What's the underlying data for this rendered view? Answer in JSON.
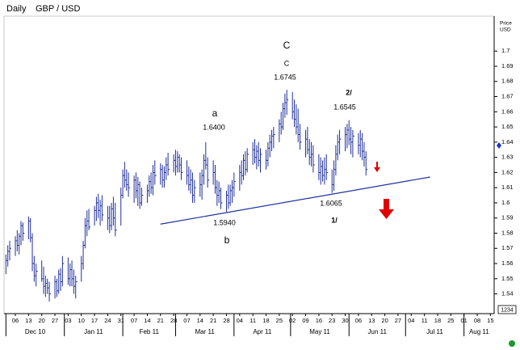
{
  "chart_data": {
    "type": "hlc",
    "title": "Daily",
    "subtitle": "GBP / USD",
    "axis_label": [
      "Price",
      "USD"
    ],
    "corner_label": "1234",
    "color": "#1f2f9e",
    "xlim": [
      "2010-11-30",
      "2011-08-17"
    ],
    "ylim": [
      1.527,
      1.723
    ],
    "yticks": [
      1.7,
      1.69,
      1.68,
      1.67,
      1.66,
      1.65,
      1.64,
      1.63,
      1.62,
      1.61,
      1.6,
      1.59,
      1.58,
      1.57,
      1.56,
      1.55,
      1.54
    ],
    "xticks": [
      {
        "value": "2010-12-06",
        "label": "06"
      },
      {
        "value": "2010-12-13",
        "label": "13"
      },
      {
        "value": "2010-12-20",
        "label": "20"
      },
      {
        "value": "2010-12-27",
        "label": "27"
      },
      {
        "value": "2011-01-03",
        "label": "03"
      },
      {
        "value": "2011-01-10",
        "label": "10"
      },
      {
        "value": "2011-01-17",
        "label": "17"
      },
      {
        "value": "2011-01-24",
        "label": "24"
      },
      {
        "value": "2011-01-31",
        "label": "31"
      },
      {
        "value": "2011-02-07",
        "label": "07"
      },
      {
        "value": "2011-02-14",
        "label": "14"
      },
      {
        "value": "2011-02-21",
        "label": "21"
      },
      {
        "value": "2011-02-28",
        "label": "28"
      },
      {
        "value": "2011-03-07",
        "label": "07"
      },
      {
        "value": "2011-03-14",
        "label": "14"
      },
      {
        "value": "2011-03-21",
        "label": "21"
      },
      {
        "value": "2011-03-28",
        "label": "28"
      },
      {
        "value": "2011-04-04",
        "label": "04"
      },
      {
        "value": "2011-04-11",
        "label": "11"
      },
      {
        "value": "2011-04-18",
        "label": "18"
      },
      {
        "value": "2011-04-25",
        "label": "25"
      },
      {
        "value": "2011-05-02",
        "label": "02"
      },
      {
        "value": "2011-05-09",
        "label": "09"
      },
      {
        "value": "2011-05-16",
        "label": "16"
      },
      {
        "value": "2011-05-23",
        "label": "23"
      },
      {
        "value": "2011-05-30",
        "label": "30"
      },
      {
        "value": "2011-06-06",
        "label": "06"
      },
      {
        "value": "2011-06-13",
        "label": "13"
      },
      {
        "value": "2011-06-20",
        "label": "20"
      },
      {
        "value": "2011-06-27",
        "label": "27"
      },
      {
        "value": "2011-07-04",
        "label": "04"
      },
      {
        "value": "2011-07-11",
        "label": "11"
      },
      {
        "value": "2011-07-18",
        "label": "18"
      },
      {
        "value": "2011-07-25",
        "label": "25"
      },
      {
        "value": "2011-08-01",
        "label": "01"
      },
      {
        "value": "2011-08-08",
        "label": "08"
      },
      {
        "value": "2011-08-15",
        "label": "15"
      }
    ],
    "months": [
      {
        "value": "2010-12",
        "label": "Dec 10"
      },
      {
        "value": "2011-01",
        "label": "Jan 11"
      },
      {
        "value": "2011-02",
        "label": "Feb 11"
      },
      {
        "value": "2011-03",
        "label": "Mar 11"
      },
      {
        "value": "2011-04",
        "label": "Apr 11"
      },
      {
        "value": "2011-05",
        "label": "May 11"
      },
      {
        "value": "2011-06",
        "label": "Jun 11"
      },
      {
        "value": "2011-07",
        "label": "Jul 11"
      },
      {
        "value": "2011-08",
        "label": "Aug 11"
      }
    ],
    "x": [
      "2010-12-01",
      "2010-12-02",
      "2010-12-03",
      "2010-12-06",
      "2010-12-07",
      "2010-12-08",
      "2010-12-09",
      "2010-12-10",
      "2010-12-13",
      "2010-12-14",
      "2010-12-15",
      "2010-12-16",
      "2010-12-17",
      "2010-12-20",
      "2010-12-21",
      "2010-12-22",
      "2010-12-23",
      "2010-12-24",
      "2010-12-27",
      "2010-12-28",
      "2010-12-29",
      "2010-12-30",
      "2010-12-31",
      "2011-01-03",
      "2011-01-04",
      "2011-01-05",
      "2011-01-06",
      "2011-01-07",
      "2011-01-10",
      "2011-01-11",
      "2011-01-12",
      "2011-01-13",
      "2011-01-14",
      "2011-01-17",
      "2011-01-18",
      "2011-01-19",
      "2011-01-20",
      "2011-01-21",
      "2011-01-24",
      "2011-01-25",
      "2011-01-26",
      "2011-01-27",
      "2011-01-28",
      "2011-01-31",
      "2011-02-01",
      "2011-02-02",
      "2011-02-03",
      "2011-02-04",
      "2011-02-07",
      "2011-02-08",
      "2011-02-09",
      "2011-02-10",
      "2011-02-11",
      "2011-02-14",
      "2011-02-15",
      "2011-02-16",
      "2011-02-17",
      "2011-02-18",
      "2011-02-21",
      "2011-02-22",
      "2011-02-23",
      "2011-02-24",
      "2011-02-25",
      "2011-02-28",
      "2011-03-01",
      "2011-03-02",
      "2011-03-03",
      "2011-03-04",
      "2011-03-07",
      "2011-03-08",
      "2011-03-09",
      "2011-03-10",
      "2011-03-11",
      "2011-03-14",
      "2011-03-15",
      "2011-03-16",
      "2011-03-17",
      "2011-03-18",
      "2011-03-21",
      "2011-03-22",
      "2011-03-23",
      "2011-03-24",
      "2011-03-25",
      "2011-03-28",
      "2011-03-29",
      "2011-03-30",
      "2011-03-31",
      "2011-04-01",
      "2011-04-04",
      "2011-04-05",
      "2011-04-06",
      "2011-04-07",
      "2011-04-08",
      "2011-04-11",
      "2011-04-12",
      "2011-04-13",
      "2011-04-14",
      "2011-04-15",
      "2011-04-18",
      "2011-04-19",
      "2011-04-20",
      "2011-04-21",
      "2011-04-22",
      "2011-04-25",
      "2011-04-26",
      "2011-04-27",
      "2011-04-28",
      "2011-04-29",
      "2011-05-02",
      "2011-05-03",
      "2011-05-04",
      "2011-05-05",
      "2011-05-06",
      "2011-05-09",
      "2011-05-10",
      "2011-05-11",
      "2011-05-12",
      "2011-05-13",
      "2011-05-16",
      "2011-05-17",
      "2011-05-18",
      "2011-05-19",
      "2011-05-20",
      "2011-05-23",
      "2011-05-24",
      "2011-05-25",
      "2011-05-26",
      "2011-05-27",
      "2011-05-30",
      "2011-05-31",
      "2011-06-01",
      "2011-06-02",
      "2011-06-03",
      "2011-06-06",
      "2011-06-07",
      "2011-06-08",
      "2011-06-09",
      "2011-06-10"
    ],
    "high": [
      1.566,
      1.572,
      1.575,
      1.578,
      1.582,
      1.58,
      1.588,
      1.587,
      1.591,
      1.59,
      1.58,
      1.565,
      1.56,
      1.562,
      1.558,
      1.552,
      1.55,
      1.548,
      1.552,
      1.55,
      1.556,
      1.557,
      1.565,
      1.564,
      1.56,
      1.562,
      1.556,
      1.552,
      1.565,
      1.575,
      1.59,
      1.595,
      1.596,
      1.598,
      1.604,
      1.606,
      1.602,
      1.605,
      1.598,
      1.598,
      1.6,
      1.604,
      1.6,
      1.61,
      1.622,
      1.627,
      1.622,
      1.62,
      1.618,
      1.62,
      1.617,
      1.614,
      1.61,
      1.612,
      1.618,
      1.62,
      1.625,
      1.628,
      1.626,
      1.625,
      1.624,
      1.63,
      1.633,
      1.632,
      1.635,
      1.634,
      1.632,
      1.63,
      1.628,
      1.624,
      1.622,
      1.62,
      1.615,
      1.62,
      1.622,
      1.632,
      1.64,
      1.63,
      1.628,
      1.625,
      1.615,
      1.614,
      1.61,
      1.608,
      1.612,
      1.612,
      1.615,
      1.62,
      1.625,
      1.628,
      1.632,
      1.634,
      1.636,
      1.64,
      1.642,
      1.638,
      1.64,
      1.636,
      1.635,
      1.64,
      1.645,
      1.648,
      1.65,
      1.655,
      1.66,
      1.666,
      1.672,
      1.6745,
      1.673,
      1.668,
      1.665,
      1.662,
      1.652,
      1.648,
      1.65,
      1.642,
      1.64,
      1.638,
      1.632,
      1.63,
      1.628,
      1.63,
      1.632,
      1.622,
      1.628,
      1.638,
      1.645,
      1.648,
      1.65,
      1.652,
      1.6545,
      1.65,
      1.648,
      1.646,
      1.648,
      1.646,
      1.64,
      1.634
    ],
    "low": [
      1.553,
      1.558,
      1.562,
      1.565,
      1.568,
      1.566,
      1.572,
      1.575,
      1.576,
      1.574,
      1.555,
      1.548,
      1.545,
      1.548,
      1.54,
      1.538,
      1.54,
      1.535,
      1.537,
      1.538,
      1.54,
      1.542,
      1.545,
      1.546,
      1.545,
      1.545,
      1.54,
      1.537,
      1.548,
      1.556,
      1.57,
      1.578,
      1.582,
      1.585,
      1.588,
      1.59,
      1.585,
      1.588,
      1.582,
      1.58,
      1.582,
      1.585,
      1.578,
      1.585,
      1.603,
      1.61,
      1.608,
      1.604,
      1.6,
      1.603,
      1.598,
      1.596,
      1.598,
      1.6,
      1.604,
      1.606,
      1.605,
      1.612,
      1.612,
      1.61,
      1.61,
      1.615,
      1.618,
      1.62,
      1.618,
      1.62,
      1.62,
      1.615,
      1.612,
      1.608,
      1.606,
      1.6,
      1.6,
      1.604,
      1.602,
      1.612,
      1.622,
      1.61,
      1.612,
      1.606,
      1.598,
      1.6,
      1.596,
      1.594,
      1.596,
      1.598,
      1.6,
      1.604,
      1.608,
      1.612,
      1.615,
      1.618,
      1.62,
      1.625,
      1.626,
      1.622,
      1.624,
      1.62,
      1.622,
      1.624,
      1.63,
      1.634,
      1.636,
      1.64,
      1.645,
      1.648,
      1.656,
      1.658,
      1.655,
      1.65,
      1.645,
      1.64,
      1.635,
      1.63,
      1.632,
      1.625,
      1.624,
      1.62,
      1.615,
      1.612,
      1.614,
      1.612,
      1.615,
      1.6065,
      1.608,
      1.618,
      1.628,
      1.632,
      1.634,
      1.636,
      1.638,
      1.632,
      1.63,
      1.632,
      1.63,
      1.628,
      1.624,
      1.618
    ],
    "close": [
      1.562,
      1.568,
      1.57,
      1.575,
      1.572,
      1.578,
      1.585,
      1.58,
      1.588,
      1.577,
      1.56,
      1.552,
      1.555,
      1.55,
      1.545,
      1.547,
      1.544,
      1.54,
      1.548,
      1.542,
      1.553,
      1.548,
      1.56,
      1.55,
      1.556,
      1.55,
      1.545,
      1.548,
      1.56,
      1.572,
      1.585,
      1.588,
      1.584,
      1.595,
      1.6,
      1.595,
      1.598,
      1.592,
      1.59,
      1.585,
      1.596,
      1.59,
      1.582,
      1.605,
      1.618,
      1.615,
      1.612,
      1.61,
      1.615,
      1.608,
      1.612,
      1.6,
      1.605,
      1.608,
      1.614,
      1.61,
      1.62,
      1.618,
      1.622,
      1.615,
      1.62,
      1.625,
      1.622,
      1.628,
      1.624,
      1.63,
      1.625,
      1.62,
      1.618,
      1.612,
      1.615,
      1.605,
      1.61,
      1.612,
      1.618,
      1.628,
      1.625,
      1.615,
      1.62,
      1.61,
      1.605,
      1.608,
      1.6,
      1.605,
      1.6,
      1.608,
      1.61,
      1.614,
      1.62,
      1.618,
      1.628,
      1.622,
      1.632,
      1.635,
      1.63,
      1.634,
      1.628,
      1.632,
      1.628,
      1.636,
      1.64,
      1.644,
      1.645,
      1.652,
      1.65,
      1.662,
      1.666,
      1.668,
      1.66,
      1.655,
      1.65,
      1.645,
      1.64,
      1.642,
      1.635,
      1.63,
      1.632,
      1.625,
      1.62,
      1.624,
      1.618,
      1.622,
      1.62,
      1.612,
      1.622,
      1.632,
      1.64,
      1.642,
      1.645,
      1.648,
      1.642,
      1.64,
      1.644,
      1.638,
      1.642,
      1.634,
      1.63,
      1.622
    ],
    "trendline": {
      "x": [
        "2011-02-21",
        "2011-07-14"
      ],
      "y": [
        1.586,
        1.617
      ]
    },
    "annotations": [
      "C",
      "C",
      "1.6745",
      "a",
      "1.6400",
      "2/",
      "1.6545",
      "1.5940",
      "b",
      "1.6065",
      "1/"
    ]
  }
}
